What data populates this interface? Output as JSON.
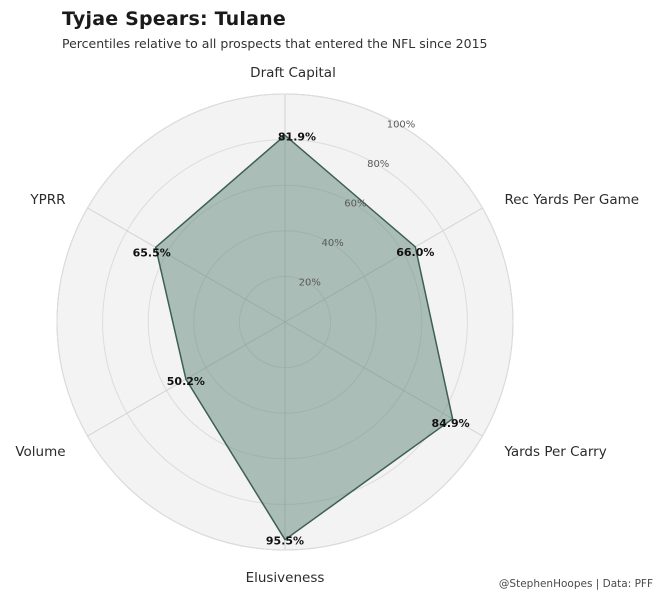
{
  "header": {
    "title": "Tyjae Spears: Tulane",
    "subtitle": "Percentiles relative to all prospects that entered the NFL since 2015"
  },
  "footer": {
    "credit": "@StephenHoopes | Data: PFF"
  },
  "chart_data": {
    "type": "radar",
    "title": "Tyjae Spears: Tulane",
    "subtitle": "Percentiles relative to all prospects that entered the NFL since 2015",
    "categories": [
      "Draft Capital",
      "Rec Yards Per Game",
      "Yards Per Carry",
      "Elusiveness",
      "Volume",
      "YPRR"
    ],
    "values": [
      81.9,
      66.0,
      84.9,
      95.5,
      50.2,
      65.5
    ],
    "value_labels": [
      "81.9%",
      "66.0%",
      "84.9%",
      "95.5%",
      "50.2%",
      "65.5%"
    ],
    "ring_values": [
      20,
      40,
      60,
      80,
      100
    ],
    "ring_labels": [
      "20%",
      "40%",
      "60%",
      "80%",
      "100%"
    ],
    "max": 100,
    "legend": "none",
    "grid": "circular",
    "colors": {
      "fill": "#628879",
      "fill_opacity": "0.5",
      "stroke": "#3d5f54",
      "panel": "#f3f3f3",
      "ring": "#dcdcdc",
      "outer_ring": "#c9c9c9",
      "spoke": "#d2d2d2",
      "value_label": "#111111",
      "axis_label": "#2b2b2b",
      "ring_label": "#5a5a5a"
    }
  }
}
